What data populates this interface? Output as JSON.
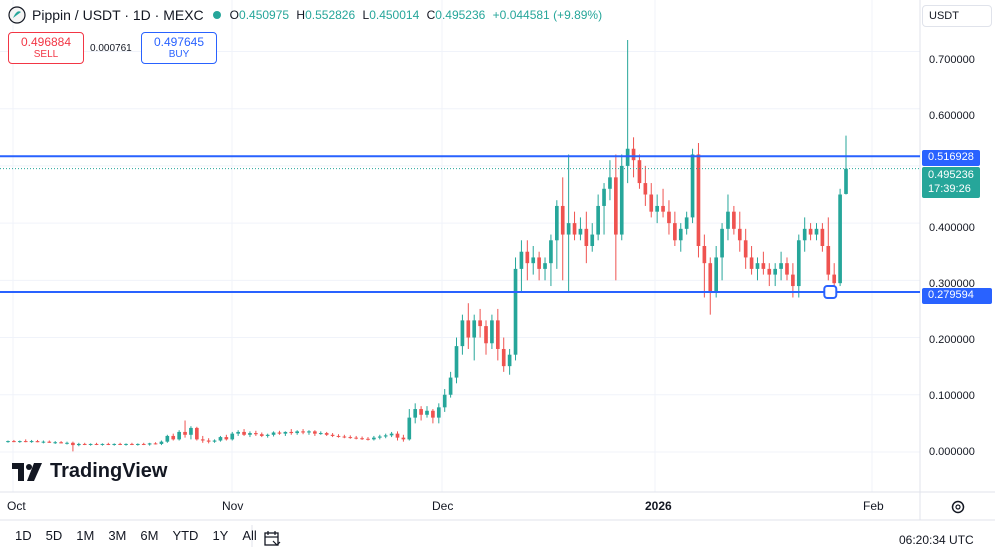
{
  "header": {
    "symbol": "Pippin / USDT · 1D · MEXC",
    "ohlc": [
      {
        "k": "O",
        "v": "0.450975"
      },
      {
        "k": "H",
        "v": "0.552826"
      },
      {
        "k": "L",
        "v": "0.450014"
      },
      {
        "k": "C",
        "v": "0.495236"
      }
    ],
    "change": "+0.044581 (+9.89%)"
  },
  "trade": {
    "sell_price": "0.496884",
    "sell_label": "SELL",
    "spread": "0.000761",
    "buy_price": "0.497645",
    "buy_label": "BUY"
  },
  "currency_button": "USDT",
  "price_axis": [
    "0.700000",
    "0.600000",
    "0.400000",
    "0.300000",
    "0.200000",
    "0.100000",
    "0.000000"
  ],
  "tags": {
    "upper_line": "0.516928",
    "last_price": "0.495236",
    "countdown": "17:39:26",
    "lower_line": "0.279594"
  },
  "time_axis": [
    {
      "label": "Oct",
      "bold": false
    },
    {
      "label": "Nov",
      "bold": false
    },
    {
      "label": "Dec",
      "bold": false
    },
    {
      "label": "2026",
      "bold": true
    },
    {
      "label": "Feb",
      "bold": false
    }
  ],
  "toolbar": [
    "1D",
    "5D",
    "1M",
    "3M",
    "6M",
    "YTD",
    "1Y",
    "All"
  ],
  "clock": "06:20:34 UTC",
  "brand": "TradingView",
  "colors": {
    "up": "#26a69a",
    "down": "#ef5350",
    "line": "#2962ff"
  },
  "icons": [
    "pippin-logo-icon",
    "calendar-icon",
    "gear-icon",
    "tradingview-logo-icon"
  ],
  "chart_data": {
    "type": "candlestick",
    "y_range": [
      -0.07,
      0.79
    ],
    "horizontal_lines": [
      0.516928,
      0.279594
    ],
    "last_price": 0.495236,
    "candles": [
      [
        0.018,
        0.02,
        0.016,
        0.019
      ],
      [
        0.019,
        0.021,
        0.017,
        0.018
      ],
      [
        0.018,
        0.02,
        0.016,
        0.019
      ],
      [
        0.019,
        0.022,
        0.017,
        0.018
      ],
      [
        0.018,
        0.021,
        0.016,
        0.019
      ],
      [
        0.019,
        0.021,
        0.017,
        0.017
      ],
      [
        0.017,
        0.02,
        0.015,
        0.018
      ],
      [
        0.018,
        0.02,
        0.016,
        0.016
      ],
      [
        0.016,
        0.019,
        0.014,
        0.017
      ],
      [
        0.017,
        0.019,
        0.015,
        0.015
      ],
      [
        0.015,
        0.018,
        0.013,
        0.016
      ],
      [
        0.016,
        0.018,
        0.001,
        0.012
      ],
      [
        0.012,
        0.016,
        0.01,
        0.014
      ],
      [
        0.014,
        0.016,
        0.012,
        0.013
      ],
      [
        0.013,
        0.015,
        0.011,
        0.014
      ],
      [
        0.014,
        0.016,
        0.012,
        0.013
      ],
      [
        0.013,
        0.015,
        0.011,
        0.014
      ],
      [
        0.014,
        0.016,
        0.012,
        0.013
      ],
      [
        0.013,
        0.015,
        0.011,
        0.014
      ],
      [
        0.014,
        0.016,
        0.012,
        0.013
      ],
      [
        0.013,
        0.015,
        0.011,
        0.014
      ],
      [
        0.014,
        0.016,
        0.012,
        0.013
      ],
      [
        0.013,
        0.015,
        0.011,
        0.014
      ],
      [
        0.014,
        0.016,
        0.012,
        0.013
      ],
      [
        0.013,
        0.016,
        0.011,
        0.015
      ],
      [
        0.015,
        0.017,
        0.013,
        0.014
      ],
      [
        0.014,
        0.02,
        0.012,
        0.018
      ],
      [
        0.018,
        0.03,
        0.016,
        0.028
      ],
      [
        0.028,
        0.032,
        0.02,
        0.022
      ],
      [
        0.022,
        0.038,
        0.02,
        0.035
      ],
      [
        0.035,
        0.055,
        0.025,
        0.03
      ],
      [
        0.03,
        0.045,
        0.022,
        0.042
      ],
      [
        0.042,
        0.044,
        0.02,
        0.022
      ],
      [
        0.022,
        0.028,
        0.016,
        0.02
      ],
      [
        0.02,
        0.024,
        0.015,
        0.018
      ],
      [
        0.018,
        0.022,
        0.016,
        0.02
      ],
      [
        0.02,
        0.028,
        0.018,
        0.026
      ],
      [
        0.026,
        0.03,
        0.02,
        0.022
      ],
      [
        0.022,
        0.035,
        0.02,
        0.032
      ],
      [
        0.032,
        0.038,
        0.028,
        0.035
      ],
      [
        0.035,
        0.04,
        0.028,
        0.03
      ],
      [
        0.03,
        0.036,
        0.026,
        0.033
      ],
      [
        0.033,
        0.037,
        0.028,
        0.031
      ],
      [
        0.031,
        0.034,
        0.026,
        0.028
      ],
      [
        0.028,
        0.032,
        0.025,
        0.03
      ],
      [
        0.03,
        0.036,
        0.027,
        0.034
      ],
      [
        0.034,
        0.037,
        0.03,
        0.032
      ],
      [
        0.032,
        0.036,
        0.028,
        0.035
      ],
      [
        0.035,
        0.04,
        0.03,
        0.033
      ],
      [
        0.033,
        0.038,
        0.03,
        0.036
      ],
      [
        0.036,
        0.04,
        0.031,
        0.034
      ],
      [
        0.034,
        0.038,
        0.03,
        0.036
      ],
      [
        0.036,
        0.038,
        0.028,
        0.032
      ],
      [
        0.032,
        0.036,
        0.03,
        0.033
      ],
      [
        0.033,
        0.035,
        0.028,
        0.03
      ],
      [
        0.03,
        0.033,
        0.026,
        0.028
      ],
      [
        0.028,
        0.031,
        0.025,
        0.027
      ],
      [
        0.027,
        0.03,
        0.024,
        0.026
      ],
      [
        0.026,
        0.029,
        0.023,
        0.025
      ],
      [
        0.025,
        0.028,
        0.022,
        0.024
      ],
      [
        0.024,
        0.027,
        0.021,
        0.023
      ],
      [
        0.023,
        0.026,
        0.02,
        0.022
      ],
      [
        0.022,
        0.028,
        0.02,
        0.025
      ],
      [
        0.025,
        0.03,
        0.022,
        0.027
      ],
      [
        0.027,
        0.032,
        0.024,
        0.029
      ],
      [
        0.029,
        0.035,
        0.026,
        0.032
      ],
      [
        0.032,
        0.036,
        0.02,
        0.025
      ],
      [
        0.025,
        0.03,
        0.018,
        0.022
      ],
      [
        0.022,
        0.075,
        0.02,
        0.06
      ],
      [
        0.06,
        0.085,
        0.05,
        0.075
      ],
      [
        0.075,
        0.08,
        0.055,
        0.065
      ],
      [
        0.065,
        0.08,
        0.06,
        0.072
      ],
      [
        0.072,
        0.075,
        0.05,
        0.06
      ],
      [
        0.06,
        0.085,
        0.05,
        0.078
      ],
      [
        0.078,
        0.11,
        0.07,
        0.1
      ],
      [
        0.1,
        0.14,
        0.095,
        0.13
      ],
      [
        0.13,
        0.2,
        0.12,
        0.185
      ],
      [
        0.185,
        0.24,
        0.17,
        0.23
      ],
      [
        0.23,
        0.26,
        0.18,
        0.2
      ],
      [
        0.2,
        0.24,
        0.16,
        0.23
      ],
      [
        0.23,
        0.25,
        0.2,
        0.22
      ],
      [
        0.22,
        0.23,
        0.17,
        0.19
      ],
      [
        0.19,
        0.24,
        0.18,
        0.23
      ],
      [
        0.23,
        0.25,
        0.16,
        0.18
      ],
      [
        0.18,
        0.2,
        0.14,
        0.15
      ],
      [
        0.15,
        0.18,
        0.135,
        0.17
      ],
      [
        0.17,
        0.34,
        0.16,
        0.32
      ],
      [
        0.32,
        0.37,
        0.28,
        0.35
      ],
      [
        0.35,
        0.37,
        0.3,
        0.33
      ],
      [
        0.33,
        0.36,
        0.31,
        0.34
      ],
      [
        0.34,
        0.35,
        0.3,
        0.32
      ],
      [
        0.32,
        0.34,
        0.3,
        0.33
      ],
      [
        0.33,
        0.38,
        0.29,
        0.37
      ],
      [
        0.37,
        0.44,
        0.32,
        0.43
      ],
      [
        0.43,
        0.48,
        0.3,
        0.38
      ],
      [
        0.38,
        0.52,
        0.28,
        0.4
      ],
      [
        0.4,
        0.42,
        0.37,
        0.38
      ],
      [
        0.38,
        0.41,
        0.37,
        0.39
      ],
      [
        0.39,
        0.42,
        0.33,
        0.36
      ],
      [
        0.36,
        0.4,
        0.35,
        0.38
      ],
      [
        0.38,
        0.45,
        0.37,
        0.43
      ],
      [
        0.43,
        0.47,
        0.38,
        0.46
      ],
      [
        0.46,
        0.51,
        0.44,
        0.48
      ],
      [
        0.48,
        0.52,
        0.3,
        0.38
      ],
      [
        0.38,
        0.52,
        0.37,
        0.5
      ],
      [
        0.5,
        0.72,
        0.47,
        0.53
      ],
      [
        0.53,
        0.55,
        0.48,
        0.51
      ],
      [
        0.51,
        0.52,
        0.46,
        0.47
      ],
      [
        0.47,
        0.5,
        0.43,
        0.45
      ],
      [
        0.45,
        0.47,
        0.41,
        0.42
      ],
      [
        0.42,
        0.45,
        0.4,
        0.43
      ],
      [
        0.43,
        0.46,
        0.41,
        0.42
      ],
      [
        0.42,
        0.44,
        0.38,
        0.4
      ],
      [
        0.4,
        0.42,
        0.36,
        0.37
      ],
      [
        0.37,
        0.4,
        0.35,
        0.39
      ],
      [
        0.39,
        0.42,
        0.38,
        0.41
      ],
      [
        0.41,
        0.53,
        0.4,
        0.52
      ],
      [
        0.52,
        0.54,
        0.34,
        0.36
      ],
      [
        0.36,
        0.38,
        0.27,
        0.33
      ],
      [
        0.33,
        0.34,
        0.24,
        0.28
      ],
      [
        0.28,
        0.36,
        0.27,
        0.34
      ],
      [
        0.34,
        0.4,
        0.3,
        0.39
      ],
      [
        0.39,
        0.45,
        0.37,
        0.42
      ],
      [
        0.42,
        0.43,
        0.38,
        0.39
      ],
      [
        0.39,
        0.42,
        0.35,
        0.37
      ],
      [
        0.37,
        0.39,
        0.32,
        0.34
      ],
      [
        0.34,
        0.36,
        0.31,
        0.32
      ],
      [
        0.32,
        0.34,
        0.3,
        0.33
      ],
      [
        0.33,
        0.35,
        0.31,
        0.32
      ],
      [
        0.32,
        0.33,
        0.29,
        0.31
      ],
      [
        0.31,
        0.33,
        0.29,
        0.32
      ],
      [
        0.32,
        0.35,
        0.3,
        0.33
      ],
      [
        0.33,
        0.34,
        0.3,
        0.31
      ],
      [
        0.31,
        0.33,
        0.27,
        0.29
      ],
      [
        0.29,
        0.38,
        0.27,
        0.37
      ],
      [
        0.37,
        0.41,
        0.35,
        0.39
      ],
      [
        0.39,
        0.4,
        0.37,
        0.38
      ],
      [
        0.38,
        0.4,
        0.37,
        0.39
      ],
      [
        0.39,
        0.4,
        0.35,
        0.36
      ],
      [
        0.36,
        0.41,
        0.3,
        0.31
      ],
      [
        0.31,
        0.33,
        0.29,
        0.295
      ],
      [
        0.295,
        0.46,
        0.29,
        0.45
      ],
      [
        0.451,
        0.553,
        0.45,
        0.495
      ]
    ]
  }
}
